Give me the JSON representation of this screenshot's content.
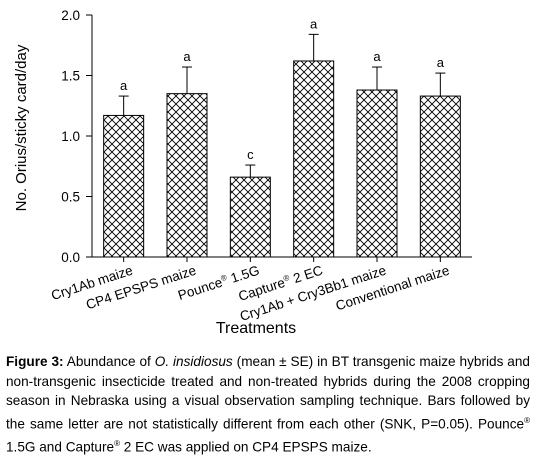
{
  "chart_data": {
    "type": "bar",
    "categories": [
      {
        "label": "Cry1Ab maize",
        "sup": ""
      },
      {
        "label": "CP4 EPSPS maize",
        "sup": ""
      },
      {
        "label": "Pounce",
        "sup": "®",
        "suffix": " 1.5G"
      },
      {
        "label": "Capture",
        "sup": "®",
        "suffix": " 2 EC"
      },
      {
        "label": "Cry1Ab + Cry3Bb1 maize",
        "sup": ""
      },
      {
        "label": "Conventional maize",
        "sup": ""
      }
    ],
    "values": [
      1.17,
      1.35,
      0.66,
      1.62,
      1.38,
      1.33
    ],
    "errors": [
      0.16,
      0.22,
      0.1,
      0.22,
      0.19,
      0.19
    ],
    "letters": [
      "a",
      "a",
      "c",
      "a",
      "a",
      "a"
    ],
    "xlabel": "Treatments",
    "ylabel": "No. Orius/sticky card/day",
    "ylim": [
      0,
      2.0
    ],
    "yticks": [
      "0.0",
      "0.5",
      "1.0",
      "1.5",
      "2.0"
    ],
    "bar_fill": "crosshatch",
    "bar_color": "#000000",
    "grid": false
  },
  "caption": {
    "label": "Figure 3:",
    "t1": " Abundance of ",
    "species": "O. insidiosus",
    "t2": " (mean ± SE) in BT transgenic maize hybrids and non-transgenic insecticide treated and non-treated hybrids during the 2008 cropping season in Nebraska using a visual observation sampling technique. Bars followed by the same letter are not statistically different from each other (SNK, P=0.05). Pounce",
    "sup1": "®",
    "t3": " 1.5G and Capture",
    "sup2": "®",
    "t4": " 2 EC was applied on CP4 EPSPS maize."
  }
}
